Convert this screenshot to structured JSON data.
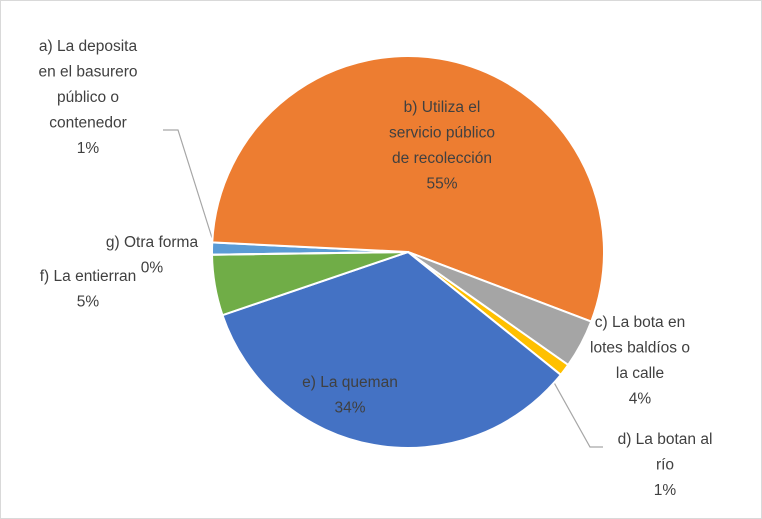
{
  "chart_data": {
    "type": "pie",
    "categories": [
      [
        "a) La deposita",
        "en el basurero",
        "público o",
        "contenedor"
      ],
      [
        "b) Utiliza el",
        "servicio público",
        "de recolección"
      ],
      [
        "c) La bota en",
        "lotes baldíos o",
        "la calle"
      ],
      [
        "d) La botan al",
        "río"
      ],
      [
        "e) La queman"
      ],
      [
        "f) La entierran"
      ],
      [
        "g) Otra forma"
      ]
    ],
    "values": [
      1,
      55,
      4,
      1,
      34,
      5,
      0
    ],
    "value_labels": [
      "1%",
      "55%",
      "4%",
      "1%",
      "34%",
      "5%",
      "0%"
    ],
    "colors": [
      "#5b9bd5",
      "#ed7d31",
      "#a5a5a5",
      "#ffc000",
      "#4472c4",
      "#70ad47",
      "#264478"
    ]
  }
}
